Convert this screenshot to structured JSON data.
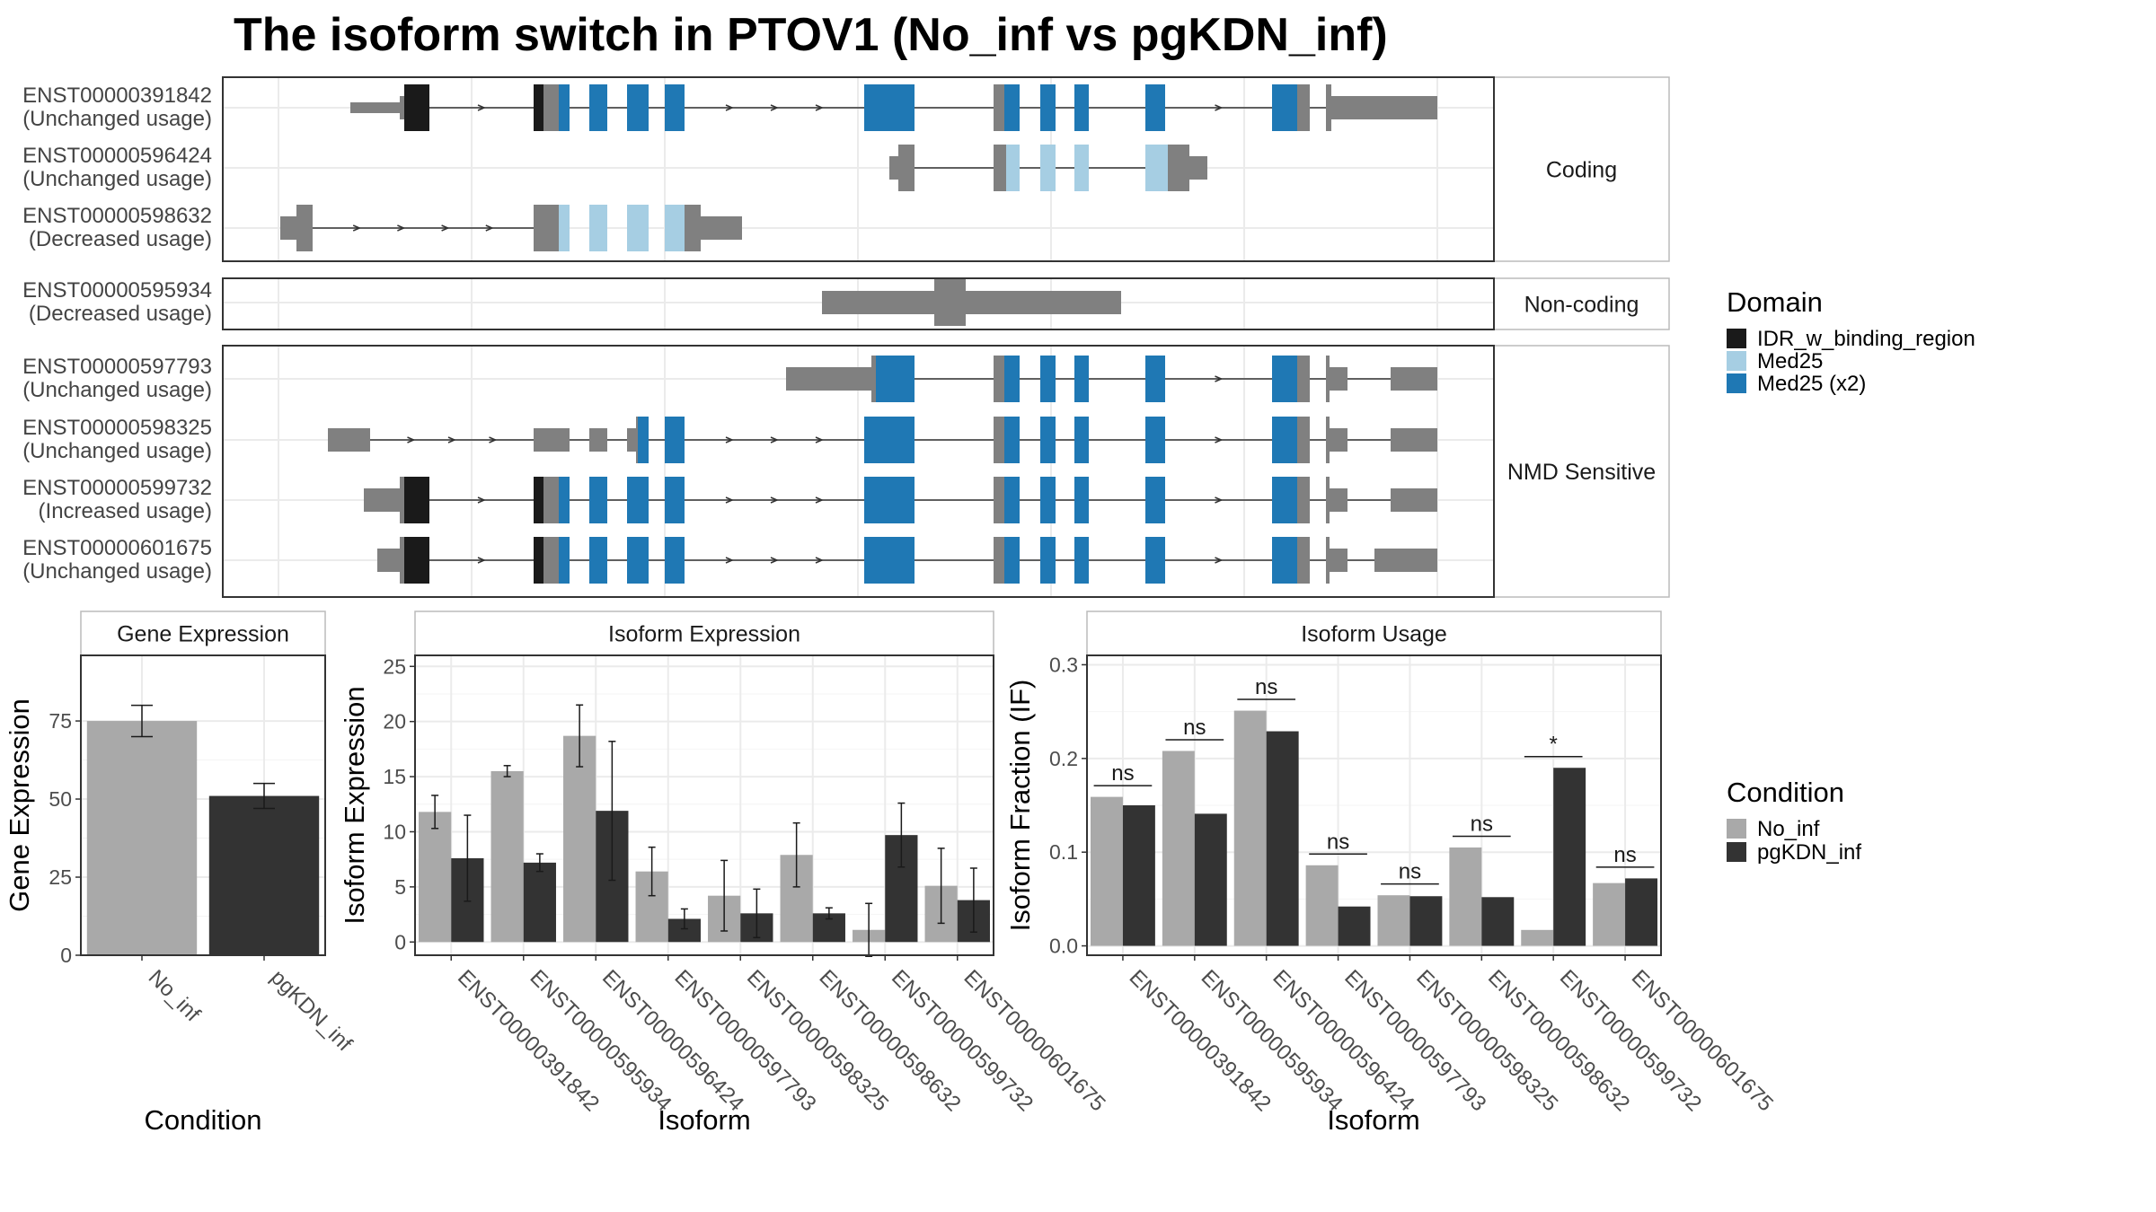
{
  "title": "The isoform switch in PTOV1 (No_inf vs pgKDN_inf)",
  "colors": {
    "idr": "#1a1a1a",
    "med25": "#a6cee3",
    "med25x2": "#1f78b4",
    "utr": "#808080",
    "no_inf": "#a9a9a9",
    "pgkdn_inf": "#333333",
    "panel_border": "#333333",
    "strip_fill": "#ffffff",
    "grid": "#ebebeb"
  },
  "structure": {
    "facets": [
      {
        "label": "Coding",
        "tracks": [
          {
            "id": "ENST00000391842",
            "usage": "(Unchanged usage)"
          },
          {
            "id": "ENST00000596424",
            "usage": "(Unchanged usage)"
          },
          {
            "id": "ENST00000598632",
            "usage": "(Decreased usage)"
          }
        ]
      },
      {
        "label": "Non-coding",
        "tracks": [
          {
            "id": "ENST00000595934",
            "usage": "(Decreased usage)"
          }
        ]
      },
      {
        "label": "NMD Sensitive",
        "tracks": [
          {
            "id": "ENST00000597793",
            "usage": "(Unchanged usage)"
          },
          {
            "id": "ENST00000598325",
            "usage": "(Unchanged usage)"
          },
          {
            "id": "ENST00000599732",
            "usage": "(Increased usage)"
          },
          {
            "id": "ENST00000601675",
            "usage": "(Unchanged usage)"
          }
        ]
      }
    ]
  },
  "legend_domain": {
    "title": "Domain",
    "items": [
      {
        "label": "IDR_w_binding_region",
        "color": "#1a1a1a"
      },
      {
        "label": "Med25",
        "color": "#a6cee3"
      },
      {
        "label": "Med25 (x2)",
        "color": "#1f78b4"
      }
    ]
  },
  "legend_condition": {
    "title": "Condition",
    "items": [
      {
        "label": "No_inf",
        "color": "#a9a9a9"
      },
      {
        "label": "pgKDN_inf",
        "color": "#333333"
      }
    ]
  },
  "chart_data": [
    {
      "type": "bar",
      "title": "Gene Expression",
      "xlabel": "Condition",
      "ylabel": "Gene Expression",
      "categories": [
        "No_inf",
        "pgKDN_inf"
      ],
      "values": [
        75,
        51
      ],
      "error": [
        5,
        4
      ],
      "colors": [
        "#a9a9a9",
        "#333333"
      ],
      "ylim": [
        0,
        96
      ],
      "yticks": [
        0,
        25,
        50,
        75
      ]
    },
    {
      "type": "bar",
      "title": "Isoform Expression",
      "xlabel": "Isoform",
      "ylabel": "Isoform Expression",
      "categories": [
        "ENST00000391842",
        "ENST00000595934",
        "ENST00000596424",
        "ENST00000597793",
        "ENST00000598325",
        "ENST00000598632",
        "ENST00000599732",
        "ENST00000601675"
      ],
      "series": [
        {
          "values": [
            11.8,
            15.5,
            18.7,
            6.4,
            4.2,
            7.9,
            1.1,
            5.1
          ],
          "error": [
            1.5,
            0.5,
            2.8,
            2.2,
            3.2,
            2.9,
            2.4,
            3.4
          ]
        },
        {
          "values": [
            7.6,
            7.2,
            11.9,
            2.1,
            2.6,
            2.6,
            9.7,
            3.8
          ],
          "error": [
            3.9,
            0.8,
            6.3,
            0.9,
            2.2,
            0.5,
            2.9,
            2.9
          ]
        }
      ],
      "ylim": [
        -1.2,
        26
      ],
      "yticks": [
        0,
        5,
        10,
        15,
        20,
        25
      ]
    },
    {
      "type": "bar",
      "title": "Isoform Usage",
      "xlabel": "Isoform",
      "ylabel": "Isoform Fraction (IF)",
      "categories": [
        "ENST00000391842",
        "ENST00000595934",
        "ENST00000596424",
        "ENST00000597793",
        "ENST00000598325",
        "ENST00000598632",
        "ENST00000599732",
        "ENST00000601675"
      ],
      "series": [
        {
          "values": [
            0.159,
            0.208,
            0.251,
            0.086,
            0.054,
            0.105,
            0.017,
            0.067
          ]
        },
        {
          "values": [
            0.15,
            0.141,
            0.229,
            0.042,
            0.053,
            0.052,
            0.19,
            0.072
          ]
        }
      ],
      "significance": [
        "ns",
        "ns",
        "ns",
        "ns",
        "ns",
        "ns",
        "*",
        "ns"
      ],
      "ylim": [
        -0.01,
        0.31
      ],
      "yticks": [
        0.0,
        0.1,
        0.2,
        0.3
      ],
      "ytick_labels": [
        "0.0",
        "0.1",
        "0.2",
        "0.3"
      ]
    }
  ]
}
